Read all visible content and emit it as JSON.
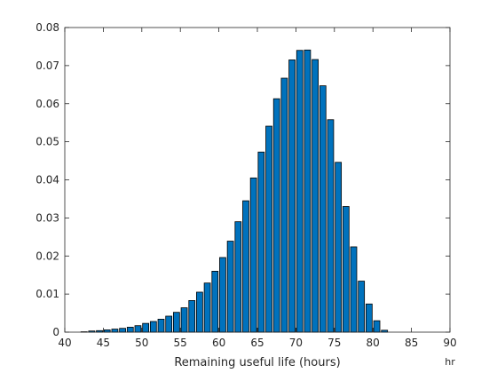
{
  "chart_data": {
    "type": "bar",
    "title": "",
    "xlabel": "Remaining useful life (hours)",
    "ylabel": "",
    "x_unit": "hr",
    "xlim": [
      40,
      90
    ],
    "ylim": [
      0,
      0.08
    ],
    "grid": false,
    "box": true,
    "bar_color": "#0072BD",
    "edge_color": "#000000",
    "bin_width": 1,
    "x_ticks": [
      40,
      45,
      50,
      55,
      60,
      65,
      70,
      75,
      80,
      85,
      90
    ],
    "x_tick_labels": [
      "40",
      "45",
      "50",
      "55",
      "60",
      "65",
      "70",
      "75",
      "80",
      "85",
      "90"
    ],
    "y_ticks": [
      0,
      0.01,
      0.02,
      0.03,
      0.04,
      0.05,
      0.06,
      0.07,
      0.08
    ],
    "y_tick_labels": [
      "0",
      "0.01",
      "0.02",
      "0.03",
      "0.04",
      "0.05",
      "0.06",
      "0.07",
      "0.08"
    ],
    "x": [
      42.5,
      43.5,
      44.5,
      45.5,
      46.5,
      47.5,
      48.5,
      49.5,
      50.5,
      51.5,
      52.5,
      53.5,
      54.5,
      55.5,
      56.5,
      57.5,
      58.5,
      59.5,
      60.5,
      61.5,
      62.5,
      63.5,
      64.5,
      65.5,
      66.5,
      67.5,
      68.5,
      69.5,
      70.5,
      71.5,
      72.5,
      73.5,
      74.5,
      75.5,
      76.5,
      77.5,
      78.5,
      79.5,
      80.5,
      81.5
    ],
    "values": [
      0.0001,
      0.0003,
      0.0004,
      0.0006,
      0.0008,
      0.001,
      0.0013,
      0.0017,
      0.0023,
      0.0028,
      0.0034,
      0.0042,
      0.0052,
      0.0064,
      0.0083,
      0.0105,
      0.0129,
      0.016,
      0.0196,
      0.0239,
      0.029,
      0.0345,
      0.0405,
      0.0473,
      0.0541,
      0.0613,
      0.0667,
      0.0715,
      0.074,
      0.0741,
      0.0716,
      0.0647,
      0.0558,
      0.0446,
      0.033,
      0.0224,
      0.0134,
      0.0074,
      0.003,
      0.0005
    ]
  }
}
